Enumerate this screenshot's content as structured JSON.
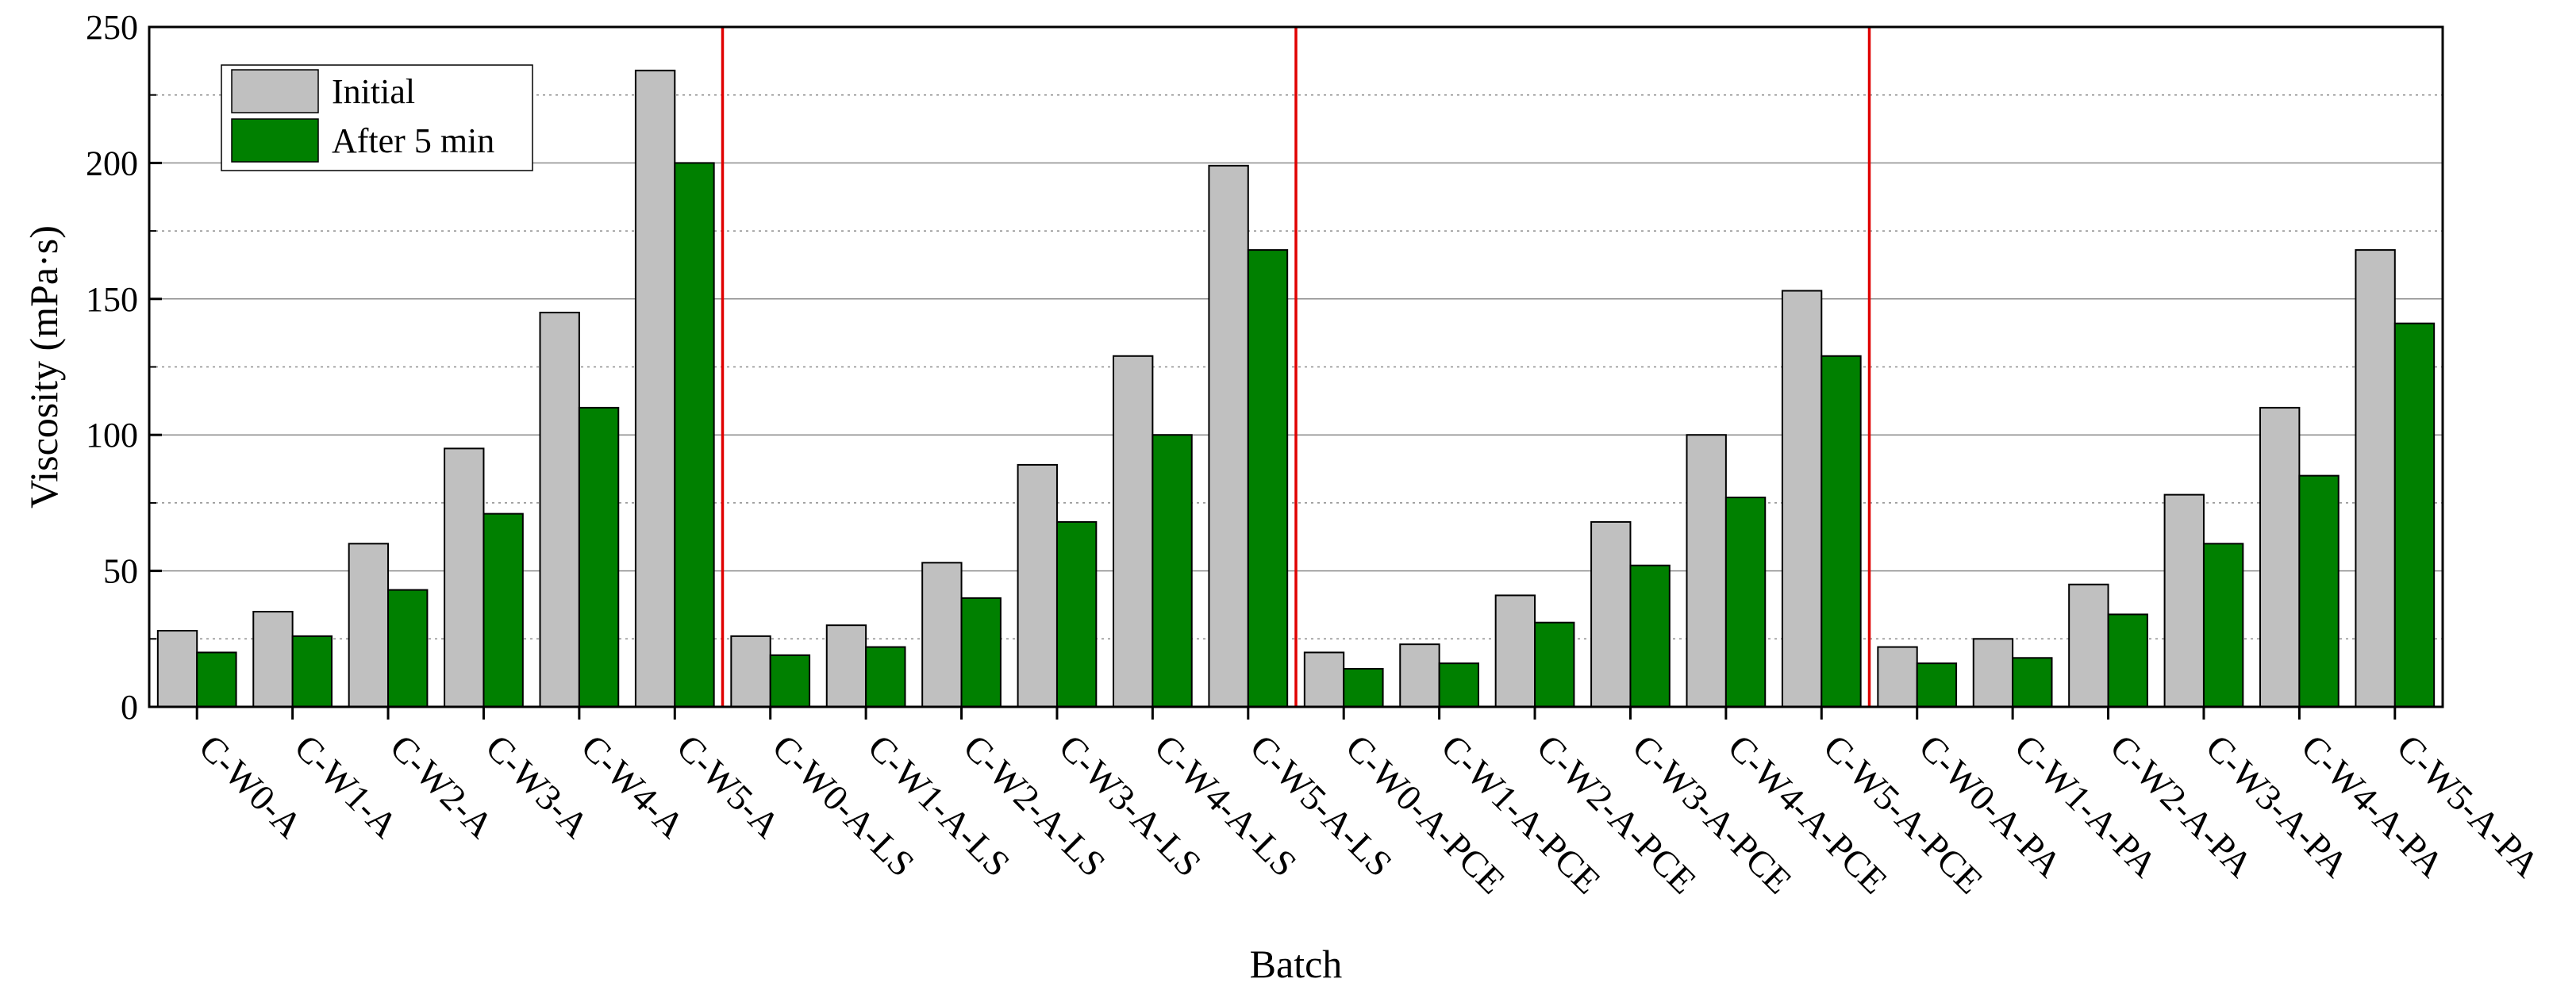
{
  "chart_data": {
    "type": "bar",
    "xlabel": "Batch",
    "ylabel": "Viscosity (mPa·s)",
    "ylim": [
      0,
      250
    ],
    "yticks": [
      0,
      50,
      100,
      150,
      200,
      250
    ],
    "grid": "major solid and minor dotted horizontal gridlines",
    "legend_position": "top-left",
    "categories": [
      "C-W0-A",
      "C-W1-A",
      "C-W2-A",
      "C-W3-A",
      "C-W4-A",
      "C-W5-A",
      "C-W0-A-LS",
      "C-W1-A-LS",
      "C-W2-A-LS",
      "C-W3-A-LS",
      "C-W4-A-LS",
      "C-W5-A-LS",
      "C-W0-A-PCE",
      "C-W1-A-PCE",
      "C-W2-A-PCE",
      "C-W3-A-PCE",
      "C-W4-A-PCE",
      "C-W5-A-PCE",
      "C-W0-A-PA",
      "C-W1-A-PA",
      "C-W2-A-PA",
      "C-W3-A-PA",
      "C-W4-A-PA",
      "C-W5-A-PA"
    ],
    "series": [
      {
        "name": "Initial",
        "color": "#c0c0c0",
        "values": [
          28,
          35,
          60,
          95,
          145,
          234,
          26,
          30,
          53,
          89,
          129,
          199,
          20,
          23,
          41,
          68,
          100,
          153,
          22,
          25,
          45,
          78,
          110,
          168
        ]
      },
      {
        "name": "After 5 min",
        "color": "#008000",
        "values": [
          20,
          26,
          43,
          71,
          110,
          200,
          19,
          22,
          40,
          68,
          100,
          168,
          14,
          16,
          31,
          52,
          77,
          129,
          16,
          18,
          34,
          60,
          85,
          141
        ]
      }
    ],
    "group_separator_color": "#e00000",
    "group_separators_after_index": [
      5,
      11,
      17
    ]
  }
}
